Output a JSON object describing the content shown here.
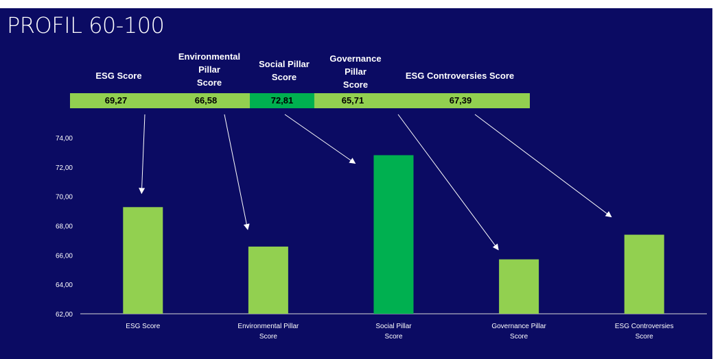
{
  "title": "PROFIL 60-100",
  "table": {
    "headers": [
      {
        "lines": [
          "ESG Score"
        ]
      },
      {
        "lines": [
          "Environmental",
          "Pillar",
          "Score"
        ]
      },
      {
        "lines": [
          "Social Pillar",
          "Score"
        ]
      },
      {
        "lines": [
          "Governance",
          "Pillar",
          "Score"
        ]
      },
      {
        "lines": [
          "ESG Controversies Score"
        ]
      }
    ],
    "values": [
      "69,27",
      "66,58",
      "72,81",
      "65,71",
      "67,39"
    ]
  },
  "colors": {
    "background": "#0b0b63",
    "bar": "#92d050",
    "highlight": "#00b050",
    "arrow": "#ffffff"
  },
  "chart_data": {
    "type": "bar",
    "categories": [
      "ESG Score",
      "Environmental Pillar Score",
      "Social Pillar Score",
      "Governance Pillar Score",
      "ESG Controversies Score"
    ],
    "category_lines": [
      [
        "ESG Score"
      ],
      [
        "Environmental Pillar",
        "Score"
      ],
      [
        "Social Pillar",
        "Score"
      ],
      [
        "Governance Pillar",
        "Score"
      ],
      [
        "ESG Controversies",
        "Score"
      ]
    ],
    "values": [
      69.27,
      66.58,
      72.81,
      65.71,
      67.39
    ],
    "highlight_index": 2,
    "ylim": [
      62,
      74
    ],
    "yticks": [
      "62,00",
      "64,00",
      "66,00",
      "68,00",
      "70,00",
      "72,00",
      "74,00"
    ],
    "grid": false,
    "title": "",
    "xlabel": "",
    "ylabel": ""
  }
}
